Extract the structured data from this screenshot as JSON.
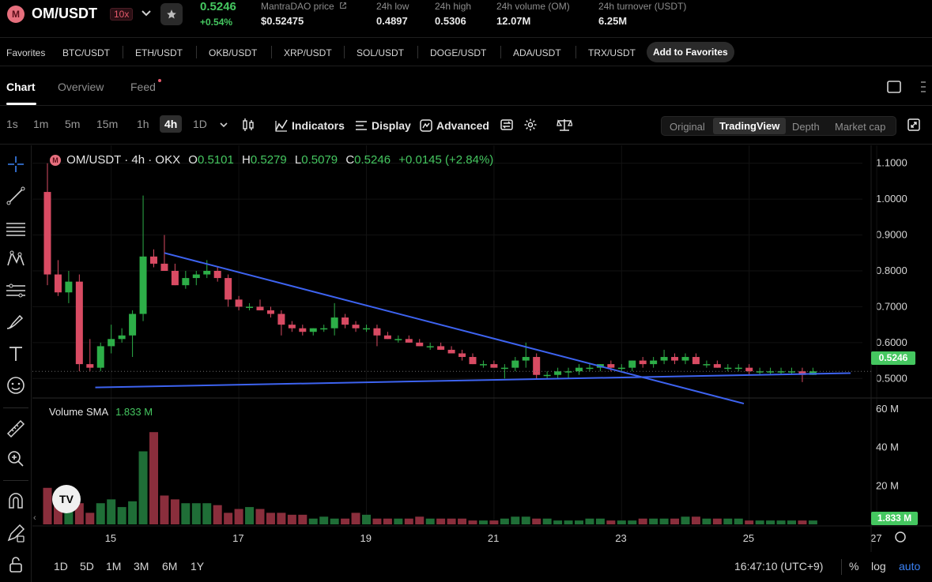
{
  "header": {
    "logo_letter": "M",
    "pair": "OM/USDT",
    "leverage": "10x",
    "last_price": "0.5246",
    "change_pct": "+0.54%",
    "stats": [
      {
        "label": "MantraDAO price",
        "value": "$0.52475"
      },
      {
        "label": "24h low",
        "value": "0.4897"
      },
      {
        "label": "24h high",
        "value": "0.5306"
      },
      {
        "label": "24h volume (OM)",
        "value": "12.07M"
      },
      {
        "label": "24h turnover (USDT)",
        "value": "6.25M"
      }
    ]
  },
  "favorites": {
    "label": "Favorites",
    "items": [
      "BTC/USDT",
      "ETH/USDT",
      "OKB/USDT",
      "XRP/USDT",
      "SOL/USDT",
      "DOGE/USDT",
      "ADA/USDT",
      "TRX/USDT"
    ],
    "add_label": "Add to Favorites"
  },
  "tabs": [
    "Chart",
    "Overview",
    "Feed"
  ],
  "toolbar": {
    "timeframes": [
      "1s",
      "1m",
      "5m",
      "15m",
      "1h",
      "4h",
      "1D"
    ],
    "active_timeframe": "4h",
    "indicators": "Indicators",
    "display": "Display",
    "advanced": "Advanced",
    "views": [
      "Original",
      "TradingView",
      "Depth",
      "Market cap"
    ],
    "active_view": "TradingView"
  },
  "legend": {
    "logo_letter": "M",
    "symbol": "OM/USDT · 4h · OKX",
    "o_label": "O",
    "o": "0.5101",
    "h_label": "H",
    "h": "0.5279",
    "l_label": "L",
    "l": "0.5079",
    "c_label": "C",
    "c": "0.5246",
    "change": "+0.0145 (+2.84%)"
  },
  "volume_legend": {
    "label": "Volume",
    "sma_label": "SMA",
    "sma_value": "1.833 M"
  },
  "price_badge": "0.5246",
  "volume_badge": "1.833 M",
  "tv_logo_text": "TV",
  "bottom": {
    "ranges": [
      "1D",
      "5D",
      "1M",
      "3M",
      "6M",
      "1Y"
    ],
    "clock": "16:47:10 (UTC+9)",
    "percent": "%",
    "log": "log",
    "auto": "auto"
  },
  "colors": {
    "up": "#2dae48",
    "down": "#d94b63",
    "up_vol": "#1f6e37",
    "down_vol": "#8a2e3c",
    "trendline": "#3d63f0"
  },
  "chart_data": {
    "type": "candlestick",
    "price_axis": {
      "min": 0.45,
      "max": 1.15,
      "ticks": [
        "1.1000",
        "1.0000",
        "0.9000",
        "0.8000",
        "0.7000",
        "0.6000",
        "0.5000"
      ]
    },
    "volume_axis": {
      "max": 60,
      "unit": "M",
      "ticks": [
        "60 M",
        "40 M",
        "20 M"
      ]
    },
    "x_axis": {
      "ticks": [
        "15",
        "17",
        "19",
        "21",
        "23",
        "25",
        "27"
      ],
      "tick_index": [
        6,
        18,
        30,
        42,
        54,
        66,
        78
      ]
    },
    "candles": [
      [
        1.02,
        1.1,
        0.76,
        0.79
      ],
      [
        0.79,
        0.83,
        0.73,
        0.74
      ],
      [
        0.74,
        0.8,
        0.71,
        0.77
      ],
      [
        0.77,
        0.79,
        0.52,
        0.54
      ],
      [
        0.54,
        0.61,
        0.52,
        0.53
      ],
      [
        0.53,
        0.6,
        0.52,
        0.59
      ],
      [
        0.59,
        0.65,
        0.57,
        0.61
      ],
      [
        0.61,
        0.64,
        0.6,
        0.62
      ],
      [
        0.62,
        0.69,
        0.56,
        0.68
      ],
      [
        0.68,
        1.01,
        0.66,
        0.84
      ],
      [
        0.84,
        0.86,
        0.81,
        0.82
      ],
      [
        0.82,
        0.9,
        0.8,
        0.8
      ],
      [
        0.8,
        0.82,
        0.76,
        0.76
      ],
      [
        0.76,
        0.8,
        0.75,
        0.78
      ],
      [
        0.78,
        0.8,
        0.76,
        0.79
      ],
      [
        0.79,
        0.83,
        0.78,
        0.8
      ],
      [
        0.8,
        0.81,
        0.77,
        0.78
      ],
      [
        0.78,
        0.79,
        0.7,
        0.72
      ],
      [
        0.72,
        0.73,
        0.69,
        0.7
      ],
      [
        0.7,
        0.71,
        0.69,
        0.7
      ],
      [
        0.7,
        0.72,
        0.69,
        0.69
      ],
      [
        0.69,
        0.7,
        0.67,
        0.68
      ],
      [
        0.68,
        0.69,
        0.62,
        0.65
      ],
      [
        0.65,
        0.66,
        0.63,
        0.64
      ],
      [
        0.64,
        0.65,
        0.62,
        0.63
      ],
      [
        0.63,
        0.64,
        0.62,
        0.64
      ],
      [
        0.64,
        0.65,
        0.63,
        0.64
      ],
      [
        0.64,
        0.71,
        0.62,
        0.67
      ],
      [
        0.67,
        0.68,
        0.64,
        0.65
      ],
      [
        0.65,
        0.66,
        0.63,
        0.64
      ],
      [
        0.64,
        0.65,
        0.63,
        0.64
      ],
      [
        0.64,
        0.65,
        0.59,
        0.62
      ],
      [
        0.62,
        0.63,
        0.61,
        0.61
      ],
      [
        0.61,
        0.62,
        0.6,
        0.61
      ],
      [
        0.61,
        0.62,
        0.6,
        0.6
      ],
      [
        0.6,
        0.61,
        0.59,
        0.59
      ],
      [
        0.59,
        0.6,
        0.58,
        0.59
      ],
      [
        0.59,
        0.6,
        0.58,
        0.58
      ],
      [
        0.58,
        0.59,
        0.57,
        0.57
      ],
      [
        0.57,
        0.58,
        0.55,
        0.56
      ],
      [
        0.56,
        0.57,
        0.54,
        0.54
      ],
      [
        0.54,
        0.55,
        0.53,
        0.54
      ],
      [
        0.54,
        0.55,
        0.53,
        0.53
      ],
      [
        0.53,
        0.54,
        0.5,
        0.53
      ],
      [
        0.53,
        0.56,
        0.52,
        0.55
      ],
      [
        0.55,
        0.6,
        0.53,
        0.56
      ],
      [
        0.56,
        0.57,
        0.5,
        0.51
      ],
      [
        0.51,
        0.52,
        0.5,
        0.51
      ],
      [
        0.51,
        0.53,
        0.5,
        0.52
      ],
      [
        0.52,
        0.53,
        0.5,
        0.52
      ],
      [
        0.52,
        0.54,
        0.51,
        0.53
      ],
      [
        0.53,
        0.54,
        0.52,
        0.53
      ],
      [
        0.53,
        0.54,
        0.52,
        0.54
      ],
      [
        0.54,
        0.55,
        0.52,
        0.53
      ],
      [
        0.53,
        0.54,
        0.52,
        0.53
      ],
      [
        0.53,
        0.55,
        0.52,
        0.55
      ],
      [
        0.55,
        0.56,
        0.53,
        0.54
      ],
      [
        0.54,
        0.56,
        0.53,
        0.55
      ],
      [
        0.55,
        0.58,
        0.54,
        0.56
      ],
      [
        0.56,
        0.57,
        0.54,
        0.55
      ],
      [
        0.55,
        0.57,
        0.54,
        0.56
      ],
      [
        0.56,
        0.57,
        0.54,
        0.54
      ],
      [
        0.54,
        0.55,
        0.53,
        0.54
      ],
      [
        0.54,
        0.55,
        0.53,
        0.53
      ],
      [
        0.53,
        0.54,
        0.52,
        0.53
      ],
      [
        0.53,
        0.54,
        0.52,
        0.53
      ],
      [
        0.53,
        0.54,
        0.51,
        0.52
      ],
      [
        0.52,
        0.53,
        0.51,
        0.52
      ],
      [
        0.52,
        0.53,
        0.51,
        0.52
      ],
      [
        0.52,
        0.53,
        0.51,
        0.52
      ],
      [
        0.52,
        0.53,
        0.51,
        0.52
      ],
      [
        0.52,
        0.53,
        0.49,
        0.51
      ],
      [
        0.51,
        0.53,
        0.51,
        0.52
      ]
    ],
    "volume": [
      19,
      11,
      7,
      11,
      6,
      11,
      13,
      9,
      12,
      38,
      48,
      15,
      13,
      11,
      11,
      11,
      10,
      6,
      8,
      9,
      8,
      6,
      6,
      5,
      5,
      3,
      4,
      3,
      3,
      6,
      5,
      3,
      3,
      3,
      3,
      4,
      3,
      3,
      3,
      3,
      2,
      2,
      2,
      3,
      4,
      4,
      3,
      3,
      2,
      2,
      2,
      3,
      3,
      2,
      2,
      2,
      3,
      3,
      3,
      3,
      4,
      4,
      3,
      3,
      3,
      3,
      2,
      2,
      2,
      2,
      2,
      2,
      2
    ]
  }
}
